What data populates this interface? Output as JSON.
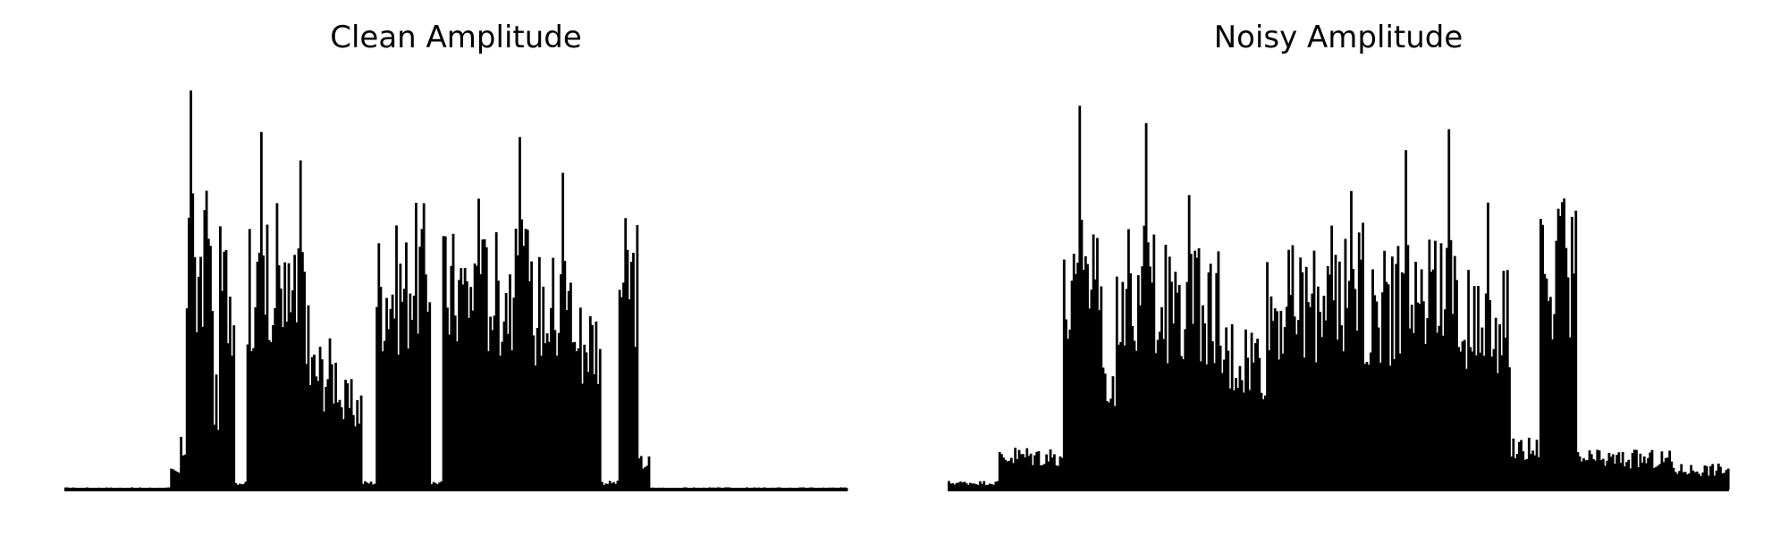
{
  "charts": [
    {
      "title": "Clean Amplitude",
      "chart_data": {
        "type": "area",
        "title": "Clean Amplitude",
        "xlabel": "",
        "ylabel": "",
        "axes_visible": false,
        "grid": false,
        "ylim": [
          0,
          1.0
        ],
        "n_samples": 400,
        "segments": [
          {
            "start": 0,
            "end": 53,
            "level": 0.005
          },
          {
            "start": 54,
            "end": 58,
            "level": 0.05
          },
          {
            "start": 59,
            "end": 61,
            "level": 0.12
          },
          {
            "start": 62,
            "end": 75,
            "level": 0.68,
            "peak": 1.0,
            "peak_at": 64
          },
          {
            "start": 76,
            "end": 78,
            "level": 0.26
          },
          {
            "start": 79,
            "end": 86,
            "level": 0.6
          },
          {
            "start": 87,
            "end": 92,
            "level": 0.02
          },
          {
            "start": 93,
            "end": 102,
            "level": 0.6,
            "peak": 0.93,
            "peak_at": 100
          },
          {
            "start": 103,
            "end": 110,
            "level": 0.65
          },
          {
            "start": 111,
            "end": 124,
            "level": 0.55,
            "peak": 0.88,
            "peak_at": 120
          },
          {
            "start": 125,
            "end": 140,
            "level": 0.35
          },
          {
            "start": 141,
            "end": 151,
            "level": 0.25
          },
          {
            "start": 152,
            "end": 158,
            "level": 0.02
          },
          {
            "start": 159,
            "end": 175,
            "level": 0.6
          },
          {
            "start": 176,
            "end": 186,
            "level": 0.65
          },
          {
            "start": 187,
            "end": 192,
            "level": 0.02
          },
          {
            "start": 193,
            "end": 215,
            "level": 0.6,
            "peak": 0.84,
            "peak_at": 211
          },
          {
            "start": 216,
            "end": 236,
            "level": 0.6,
            "peak": 0.96,
            "peak_at": 232
          },
          {
            "start": 237,
            "end": 260,
            "level": 0.55,
            "peak": 0.88,
            "peak_at": 254
          },
          {
            "start": 261,
            "end": 273,
            "level": 0.45
          },
          {
            "start": 274,
            "end": 282,
            "level": 0.02
          },
          {
            "start": 283,
            "end": 292,
            "level": 0.62
          },
          {
            "start": 293,
            "end": 298,
            "level": 0.08
          },
          {
            "start": 299,
            "end": 399,
            "level": 0.005
          }
        ]
      }
    },
    {
      "title": "Noisy Amplitude",
      "chart_data": {
        "type": "area",
        "title": "Noisy Amplitude",
        "xlabel": "",
        "ylabel": "",
        "axes_visible": false,
        "grid": false,
        "ylim": [
          0,
          1.0
        ],
        "n_samples": 400,
        "segments": [
          {
            "start": 0,
            "end": 25,
            "level": 0.02
          },
          {
            "start": 26,
            "end": 58,
            "level": 0.1
          },
          {
            "start": 59,
            "end": 66,
            "level": 0.55
          },
          {
            "start": 67,
            "end": 78,
            "level": 0.7,
            "peak": 1.0,
            "peak_at": 67
          },
          {
            "start": 79,
            "end": 85,
            "level": 0.3
          },
          {
            "start": 86,
            "end": 110,
            "level": 0.6,
            "peak": 0.93,
            "peak_at": 101
          },
          {
            "start": 111,
            "end": 138,
            "level": 0.55,
            "peak": 0.85,
            "peak_at": 123
          },
          {
            "start": 139,
            "end": 162,
            "level": 0.4
          },
          {
            "start": 163,
            "end": 190,
            "level": 0.55
          },
          {
            "start": 191,
            "end": 212,
            "level": 0.6,
            "peak": 0.78,
            "peak_at": 206
          },
          {
            "start": 213,
            "end": 244,
            "level": 0.55,
            "peak": 0.88,
            "peak_at": 234
          },
          {
            "start": 245,
            "end": 262,
            "level": 0.6,
            "peak": 0.93,
            "peak_at": 256
          },
          {
            "start": 263,
            "end": 287,
            "level": 0.5,
            "peak": 0.72,
            "peak_at": 276
          },
          {
            "start": 288,
            "end": 302,
            "level": 0.12
          },
          {
            "start": 303,
            "end": 321,
            "level": 0.65,
            "peak": 0.72,
            "peak_at": 315
          },
          {
            "start": 322,
            "end": 370,
            "level": 0.09
          },
          {
            "start": 371,
            "end": 399,
            "level": 0.06
          }
        ]
      }
    }
  ]
}
